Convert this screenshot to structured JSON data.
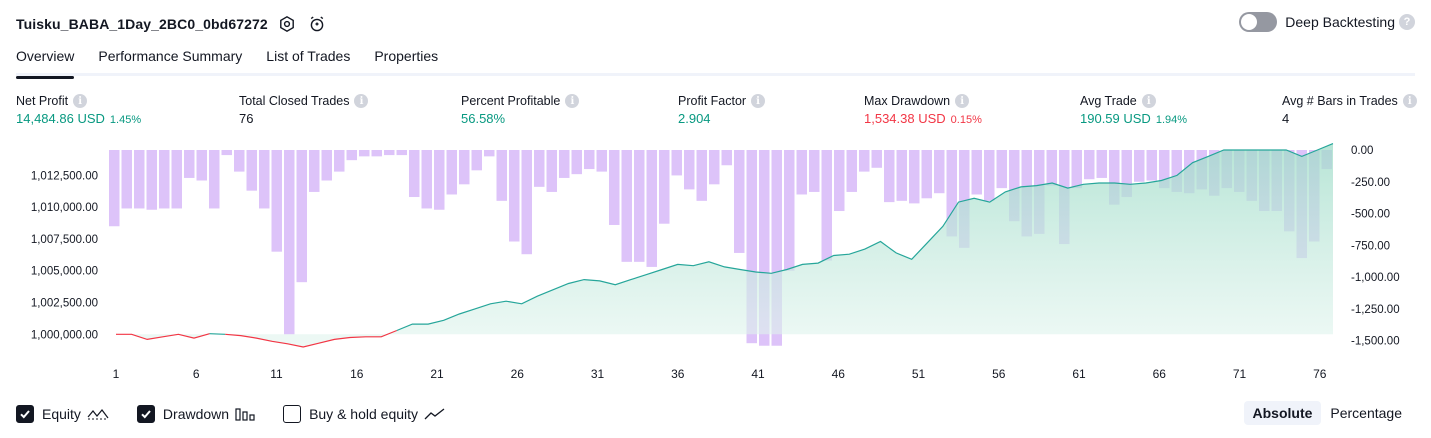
{
  "header": {
    "title": "Tuisku_BABA_1Day_2BC0_0bd67272",
    "deep_backtesting_label": "Deep Backtesting",
    "help_glyph": "?"
  },
  "tabs": [
    "Overview",
    "Performance Summary",
    "List of Trades",
    "Properties"
  ],
  "stats": [
    {
      "label": "Net Profit",
      "value": "14,484.86 USD",
      "pct": "1.45%",
      "color": "green"
    },
    {
      "label": "Total Closed Trades",
      "value": "76",
      "pct": "",
      "color": "dark"
    },
    {
      "label": "Percent Profitable",
      "value": "56.58%",
      "pct": "",
      "color": "green"
    },
    {
      "label": "Profit Factor",
      "value": "2.904",
      "pct": "",
      "color": "green"
    },
    {
      "label": "Max Drawdown",
      "value": "1,534.38 USD",
      "pct": "0.15%",
      "color": "red"
    },
    {
      "label": "Avg Trade",
      "value": "190.59 USD",
      "pct": "1.94%",
      "color": "green"
    },
    {
      "label": "Avg # Bars in Trades",
      "value": "4",
      "pct": "",
      "color": "dark"
    }
  ],
  "chart_data": {
    "type": "line",
    "x_ticks": [
      "1",
      "6",
      "11",
      "16",
      "21",
      "26",
      "31",
      "36",
      "41",
      "46",
      "51",
      "56",
      "61",
      "66",
      "71",
      "76"
    ],
    "left_axis": {
      "ticks": [
        "1,000,000.00",
        "1,002,500.00",
        "1,005,000.00",
        "1,007,500.00",
        "1,010,000.00",
        "1,012,500.00"
      ],
      "ylim": [
        999000,
        1014500
      ]
    },
    "right_axis": {
      "ticks": [
        "0.00",
        "-250.00",
        "-500.00",
        "-750.00",
        "-1,000.00",
        "-1,250.00",
        "-1,500.00"
      ],
      "ylim": [
        -1550,
        0
      ]
    },
    "series": [
      {
        "name": "Equity",
        "values": [
          1000000,
          1000000,
          999600,
          999800,
          1000000,
          999700,
          1000050,
          1000000,
          999900,
          999700,
          999450,
          999250,
          999000,
          999300,
          999600,
          999750,
          999800,
          999800,
          1000300,
          1000800,
          1000800,
          1001100,
          1001600,
          1002000,
          1002400,
          1002600,
          1002400,
          1003000,
          1003500,
          1004000,
          1004300,
          1004200,
          1003900,
          1004300,
          1004700,
          1005100,
          1005500,
          1005400,
          1005700,
          1005300,
          1005100,
          1004900,
          1004800,
          1005100,
          1005500,
          1005600,
          1006200,
          1006300,
          1006700,
          1007300,
          1006400,
          1005900,
          1007200,
          1008500,
          1010400,
          1010700,
          1010400,
          1011200,
          1011600,
          1011700,
          1011900,
          1011500,
          1011800,
          1011900,
          1011900,
          1011800,
          1011900,
          1012100,
          1012500,
          1013500,
          1014000,
          1014500,
          1014500,
          1014500,
          1014500,
          1014500,
          1014000,
          1014500,
          1015000
        ],
        "color": "#26a69a"
      },
      {
        "name": "Drawdown",
        "values": [
          -600,
          -460,
          -460,
          -470,
          -460,
          -460,
          -220,
          -240,
          -460,
          -40,
          -170,
          -320,
          -460,
          -800,
          -1450,
          -1040,
          -330,
          -240,
          -170,
          -80,
          -50,
          -50,
          -40,
          -40,
          -370,
          -460,
          -470,
          -350,
          -270,
          -160,
          -50,
          -400,
          -720,
          -820,
          -290,
          -330,
          -220,
          -190,
          -150,
          -170,
          -590,
          -880,
          -880,
          -920,
          -580,
          -200,
          -310,
          -400,
          -270,
          -120,
          -810,
          -1520,
          -1540,
          -1540,
          -950,
          -350,
          -330,
          -870,
          -480,
          -330,
          -170,
          -140,
          -410,
          -400,
          -420,
          -380,
          -340,
          -680,
          -770,
          -350,
          -400,
          -300,
          -560,
          -680,
          -660,
          -280,
          -740,
          -300,
          -230,
          -220,
          -430,
          -370,
          -250,
          -240,
          -300,
          -330,
          -340,
          -310,
          -360,
          -300,
          -330,
          -400,
          -480,
          -480,
          -640,
          -850,
          -720,
          -150
        ],
        "color": "#b39ddb"
      }
    ]
  },
  "legend": {
    "equity": "Equity",
    "drawdown": "Drawdown",
    "buy_hold": "Buy & hold equity"
  },
  "modes": {
    "absolute": "Absolute",
    "percentage": "Percentage"
  },
  "colors": {
    "green": "#089981",
    "red": "#f23645",
    "equity_line": "#26a69a",
    "equity_fill": "#d1efe7",
    "drawdown_bar": "#d7b9f8",
    "loss_line": "#f23645"
  }
}
